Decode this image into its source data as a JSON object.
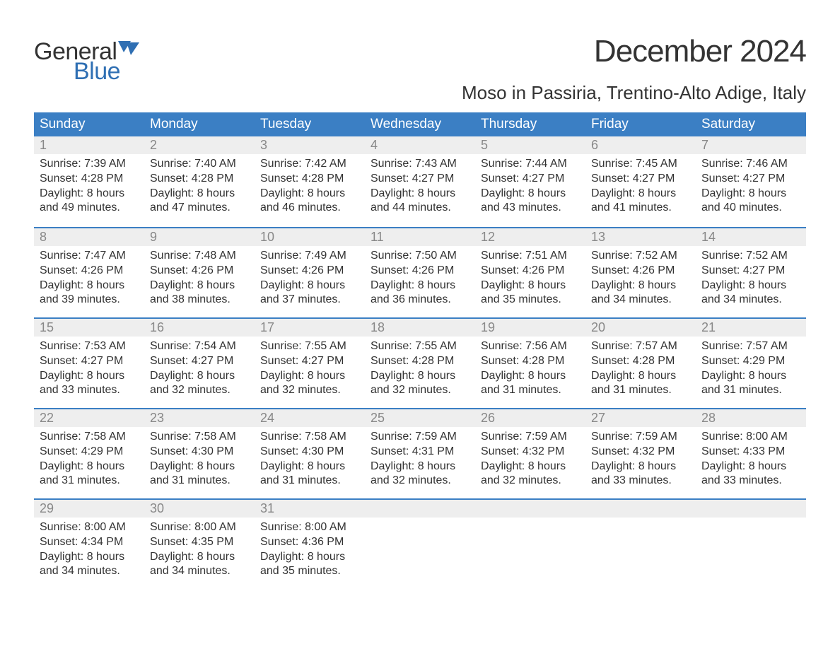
{
  "brand": {
    "text_general": "General",
    "text_blue": "Blue",
    "flag_color": "#2f6fb3",
    "text_dark": "#333333"
  },
  "title": "December 2024",
  "location": "Moso in Passiria, Trentino-Alto Adige, Italy",
  "colors": {
    "header_bg": "#3b7fc4",
    "header_text": "#ffffff",
    "daynum_bg": "#eeeeee",
    "daynum_text": "#888888",
    "body_text": "#333333",
    "week_border": "#3b7fc4",
    "page_bg": "#ffffff"
  },
  "typography": {
    "title_fontsize": 44,
    "location_fontsize": 26,
    "dayheader_fontsize": 19,
    "daynum_fontsize": 18,
    "body_fontsize": 16,
    "logo_fontsize": 34
  },
  "day_names": [
    "Sunday",
    "Monday",
    "Tuesday",
    "Wednesday",
    "Thursday",
    "Friday",
    "Saturday"
  ],
  "weeks": [
    [
      {
        "n": "1",
        "sunrise": "7:39 AM",
        "sunset": "4:28 PM",
        "dl1": "8 hours",
        "dl2": "and 49 minutes."
      },
      {
        "n": "2",
        "sunrise": "7:40 AM",
        "sunset": "4:28 PM",
        "dl1": "8 hours",
        "dl2": "and 47 minutes."
      },
      {
        "n": "3",
        "sunrise": "7:42 AM",
        "sunset": "4:28 PM",
        "dl1": "8 hours",
        "dl2": "and 46 minutes."
      },
      {
        "n": "4",
        "sunrise": "7:43 AM",
        "sunset": "4:27 PM",
        "dl1": "8 hours",
        "dl2": "and 44 minutes."
      },
      {
        "n": "5",
        "sunrise": "7:44 AM",
        "sunset": "4:27 PM",
        "dl1": "8 hours",
        "dl2": "and 43 minutes."
      },
      {
        "n": "6",
        "sunrise": "7:45 AM",
        "sunset": "4:27 PM",
        "dl1": "8 hours",
        "dl2": "and 41 minutes."
      },
      {
        "n": "7",
        "sunrise": "7:46 AM",
        "sunset": "4:27 PM",
        "dl1": "8 hours",
        "dl2": "and 40 minutes."
      }
    ],
    [
      {
        "n": "8",
        "sunrise": "7:47 AM",
        "sunset": "4:26 PM",
        "dl1": "8 hours",
        "dl2": "and 39 minutes."
      },
      {
        "n": "9",
        "sunrise": "7:48 AM",
        "sunset": "4:26 PM",
        "dl1": "8 hours",
        "dl2": "and 38 minutes."
      },
      {
        "n": "10",
        "sunrise": "7:49 AM",
        "sunset": "4:26 PM",
        "dl1": "8 hours",
        "dl2": "and 37 minutes."
      },
      {
        "n": "11",
        "sunrise": "7:50 AM",
        "sunset": "4:26 PM",
        "dl1": "8 hours",
        "dl2": "and 36 minutes."
      },
      {
        "n": "12",
        "sunrise": "7:51 AM",
        "sunset": "4:26 PM",
        "dl1": "8 hours",
        "dl2": "and 35 minutes."
      },
      {
        "n": "13",
        "sunrise": "7:52 AM",
        "sunset": "4:26 PM",
        "dl1": "8 hours",
        "dl2": "and 34 minutes."
      },
      {
        "n": "14",
        "sunrise": "7:52 AM",
        "sunset": "4:27 PM",
        "dl1": "8 hours",
        "dl2": "and 34 minutes."
      }
    ],
    [
      {
        "n": "15",
        "sunrise": "7:53 AM",
        "sunset": "4:27 PM",
        "dl1": "8 hours",
        "dl2": "and 33 minutes."
      },
      {
        "n": "16",
        "sunrise": "7:54 AM",
        "sunset": "4:27 PM",
        "dl1": "8 hours",
        "dl2": "and 32 minutes."
      },
      {
        "n": "17",
        "sunrise": "7:55 AM",
        "sunset": "4:27 PM",
        "dl1": "8 hours",
        "dl2": "and 32 minutes."
      },
      {
        "n": "18",
        "sunrise": "7:55 AM",
        "sunset": "4:28 PM",
        "dl1": "8 hours",
        "dl2": "and 32 minutes."
      },
      {
        "n": "19",
        "sunrise": "7:56 AM",
        "sunset": "4:28 PM",
        "dl1": "8 hours",
        "dl2": "and 31 minutes."
      },
      {
        "n": "20",
        "sunrise": "7:57 AM",
        "sunset": "4:28 PM",
        "dl1": "8 hours",
        "dl2": "and 31 minutes."
      },
      {
        "n": "21",
        "sunrise": "7:57 AM",
        "sunset": "4:29 PM",
        "dl1": "8 hours",
        "dl2": "and 31 minutes."
      }
    ],
    [
      {
        "n": "22",
        "sunrise": "7:58 AM",
        "sunset": "4:29 PM",
        "dl1": "8 hours",
        "dl2": "and 31 minutes."
      },
      {
        "n": "23",
        "sunrise": "7:58 AM",
        "sunset": "4:30 PM",
        "dl1": "8 hours",
        "dl2": "and 31 minutes."
      },
      {
        "n": "24",
        "sunrise": "7:58 AM",
        "sunset": "4:30 PM",
        "dl1": "8 hours",
        "dl2": "and 31 minutes."
      },
      {
        "n": "25",
        "sunrise": "7:59 AM",
        "sunset": "4:31 PM",
        "dl1": "8 hours",
        "dl2": "and 32 minutes."
      },
      {
        "n": "26",
        "sunrise": "7:59 AM",
        "sunset": "4:32 PM",
        "dl1": "8 hours",
        "dl2": "and 32 minutes."
      },
      {
        "n": "27",
        "sunrise": "7:59 AM",
        "sunset": "4:32 PM",
        "dl1": "8 hours",
        "dl2": "and 33 minutes."
      },
      {
        "n": "28",
        "sunrise": "8:00 AM",
        "sunset": "4:33 PM",
        "dl1": "8 hours",
        "dl2": "and 33 minutes."
      }
    ],
    [
      {
        "n": "29",
        "sunrise": "8:00 AM",
        "sunset": "4:34 PM",
        "dl1": "8 hours",
        "dl2": "and 34 minutes."
      },
      {
        "n": "30",
        "sunrise": "8:00 AM",
        "sunset": "4:35 PM",
        "dl1": "8 hours",
        "dl2": "and 34 minutes."
      },
      {
        "n": "31",
        "sunrise": "8:00 AM",
        "sunset": "4:36 PM",
        "dl1": "8 hours",
        "dl2": "and 35 minutes."
      },
      null,
      null,
      null,
      null
    ]
  ],
  "labels": {
    "sunrise": "Sunrise: ",
    "sunset": "Sunset: ",
    "daylight": "Daylight: "
  }
}
